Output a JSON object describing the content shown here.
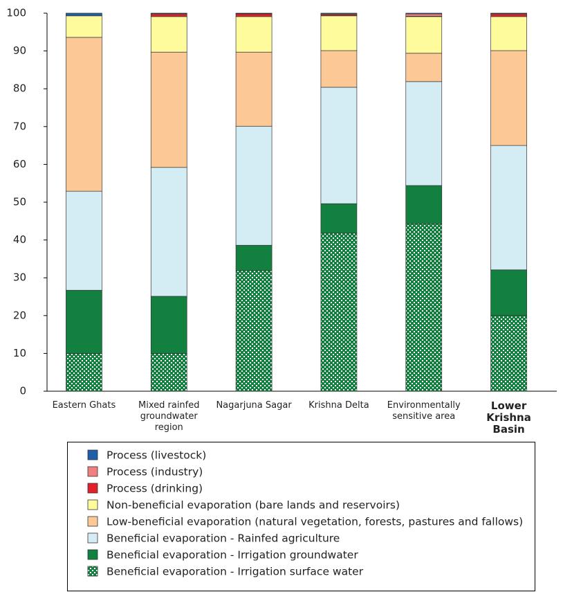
{
  "chart_data": {
    "type": "stacked_bar",
    "categories": [
      "Eastern Ghats",
      "Mixed rainfed groundwater region",
      "Nagarjuna Sagar",
      "Krishna Delta",
      "Environmentally sensitive area",
      "Lower Krishna Basin"
    ],
    "bold_categories": [
      "Lower Krishna Basin"
    ],
    "series": [
      {
        "name": "Process (livestock)",
        "color": "#1f5fa8",
        "values": [
          0.7,
          0.1,
          0.1,
          0.2,
          0.2,
          0.1
        ]
      },
      {
        "name": "Process (industry)",
        "color": "#f08080",
        "values": [
          0,
          0.2,
          0.1,
          0.2,
          0.6,
          0.2
        ]
      },
      {
        "name": "Process (drinking)",
        "color": "#e3202a",
        "values": [
          0,
          0.6,
          0.7,
          0.3,
          0.1,
          0.6
        ]
      },
      {
        "name": "Non-beneficial evaporation (bare lands and reservoirs)",
        "color": "#fdfb9c",
        "values": [
          5.7,
          9.4,
          9.4,
          9.2,
          9.7,
          9.0
        ]
      },
      {
        "name": "Low-beneficial evaporation (natural vegetation, forests, pastures and fallows)",
        "color": "#fcc996",
        "values": [
          40.7,
          30.5,
          19.6,
          9.7,
          7.5,
          25.1
        ]
      },
      {
        "name": "Beneficial evaporation - Rainfed agriculture",
        "color": "#d4ecf4",
        "values": [
          26.2,
          34.1,
          31.5,
          30.8,
          27.5,
          32.9
        ]
      },
      {
        "name": "Beneficial evaporation - Irrigation groundwater",
        "color": "#12803f",
        "values": [
          16.7,
          15.1,
          6.7,
          7.8,
          10.1,
          12.1
        ]
      },
      {
        "name": "Beneficial evaporation - Irrigation surface water",
        "color": "#12803f",
        "pattern": "dots",
        "values": [
          10,
          10,
          31.9,
          41.8,
          44.3,
          20
        ]
      }
    ],
    "ylim": [
      0,
      100
    ],
    "yticks": [
      0,
      10,
      20,
      30,
      40,
      50,
      60,
      70,
      80,
      90,
      100
    ],
    "grid": false
  }
}
